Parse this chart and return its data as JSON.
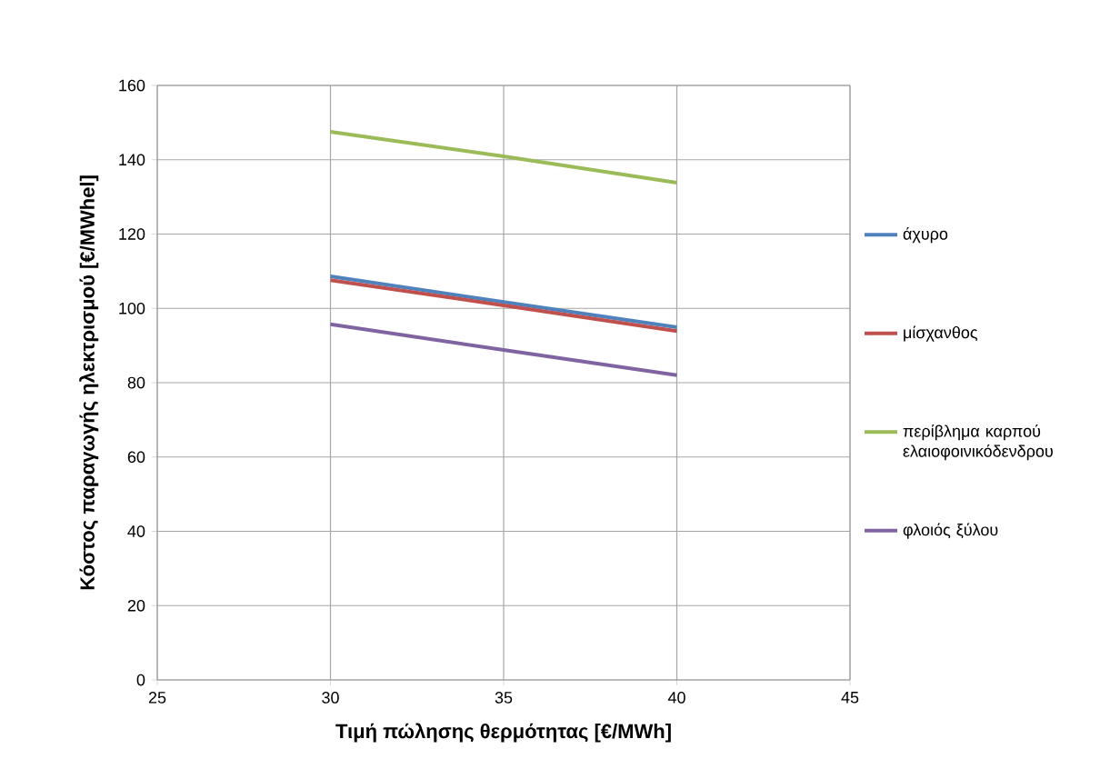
{
  "chart_data": {
    "type": "line",
    "xlabel": "Τιμή πώλησης θερμότητας [€/MWh]",
    "ylabel": "Κόστος παραγωγής ηλεκτρισμού [€/MWhel]",
    "x": [
      30,
      35,
      40
    ],
    "series": [
      {
        "name": "άχυρο",
        "color": "#4f81bd",
        "values": [
          108.6,
          101.7,
          94.9
        ]
      },
      {
        "name": "μίσχανθος",
        "color": "#c0504d",
        "values": [
          107.6,
          100.8,
          93.9
        ]
      },
      {
        "name": "περίβλημα καρπού ελαιοφοινικόδενδρου",
        "color": "#9bbb59",
        "values": [
          147.5,
          140.9,
          133.8
        ]
      },
      {
        "name": "φλοιός ξύλου",
        "color": "#8064a2",
        "values": [
          95.7,
          88.8,
          82.0
        ]
      }
    ],
    "xlim": [
      25,
      45
    ],
    "xticks": [
      25,
      30,
      35,
      40,
      45
    ],
    "ylim": [
      0,
      160
    ],
    "yticks": [
      0,
      20,
      40,
      60,
      80,
      100,
      120,
      140,
      160
    ],
    "grid": true,
    "legend": "right",
    "marker": "none",
    "line_style": "solid"
  }
}
